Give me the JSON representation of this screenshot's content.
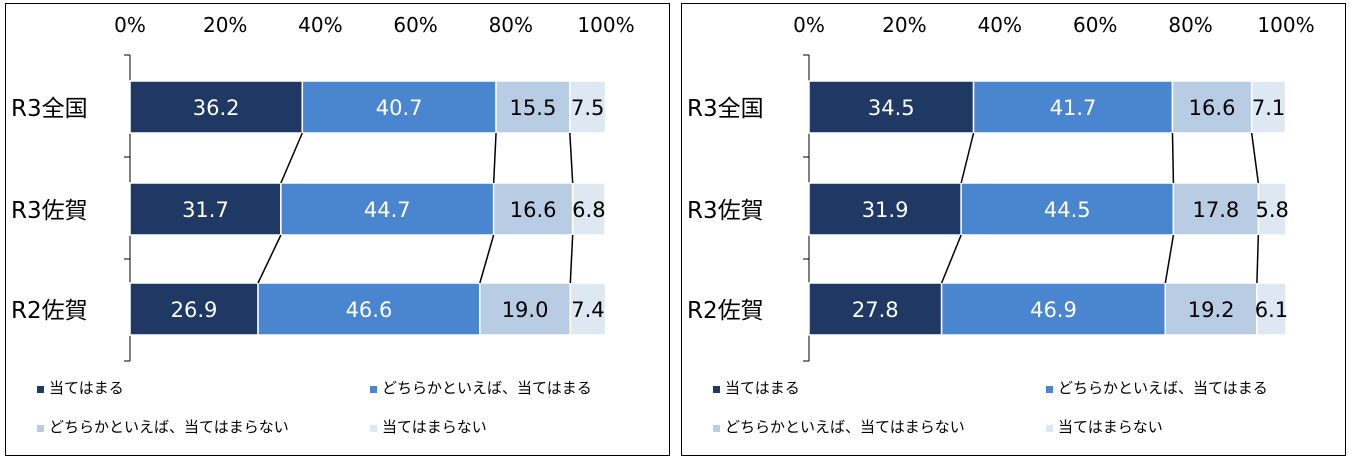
{
  "colors": {
    "s1": "#203864",
    "s2": "#4a86d0",
    "s3": "#b8cce4",
    "s4": "#dde8f3",
    "panel_border": "#000000",
    "axis": "#000000",
    "connector": "#000000"
  },
  "chart_data": [
    {
      "type": "bar",
      "orientation": "horizontal",
      "stacked": true,
      "categories": [
        "R3全国",
        "R3佐賀",
        "R2佐賀"
      ],
      "x_ticks": [
        "0%",
        "20%",
        "40%",
        "60%",
        "80%",
        "100%"
      ],
      "xlim": [
        0,
        100
      ],
      "legend_position": "bottom",
      "series": [
        {
          "name": "当てはまる",
          "color": "#203864",
          "values": [
            36.2,
            31.7,
            26.9
          ],
          "labels": [
            "36.2",
            "31.7",
            "26.9"
          ]
        },
        {
          "name": "どちらかといえば、当てはまる",
          "color": "#4a86d0",
          "values": [
            40.7,
            44.7,
            46.6
          ],
          "labels": [
            "40.7",
            "44.7",
            "46.6"
          ]
        },
        {
          "name": "どちらかといえば、当てはまらない",
          "color": "#b8cce4",
          "values": [
            15.5,
            16.6,
            19.0
          ],
          "labels": [
            "15.5",
            "16.6",
            "19.0"
          ]
        },
        {
          "name": "当てはまらない",
          "color": "#dde8f3",
          "values": [
            7.5,
            6.8,
            7.4
          ],
          "labels": [
            "7.5",
            "6.8",
            "7.4"
          ]
        }
      ]
    },
    {
      "type": "bar",
      "orientation": "horizontal",
      "stacked": true,
      "categories": [
        "R3全国",
        "R3佐賀",
        "R2佐賀"
      ],
      "x_ticks": [
        "0%",
        "20%",
        "40%",
        "60%",
        "80%",
        "100%"
      ],
      "xlim": [
        0,
        100
      ],
      "legend_position": "bottom",
      "series": [
        {
          "name": "当てはまる",
          "color": "#203864",
          "values": [
            34.5,
            31.9,
            27.8
          ],
          "labels": [
            "34.5",
            "31.9",
            "27.8"
          ]
        },
        {
          "name": "どちらかといえば、当てはまる",
          "color": "#4a86d0",
          "values": [
            41.7,
            44.5,
            46.9
          ],
          "labels": [
            "41.7",
            "44.5",
            "46.9"
          ]
        },
        {
          "name": "どちらかといえば、当てはまらない",
          "color": "#b8cce4",
          "values": [
            16.6,
            17.8,
            19.2
          ],
          "labels": [
            "16.6",
            "17.8",
            "19.2"
          ]
        },
        {
          "name": "当てはまらない",
          "color": "#dde8f3",
          "values": [
            7.1,
            5.8,
            6.1
          ],
          "labels": [
            "7.1",
            "5.8",
            "6.1"
          ]
        }
      ]
    }
  ]
}
